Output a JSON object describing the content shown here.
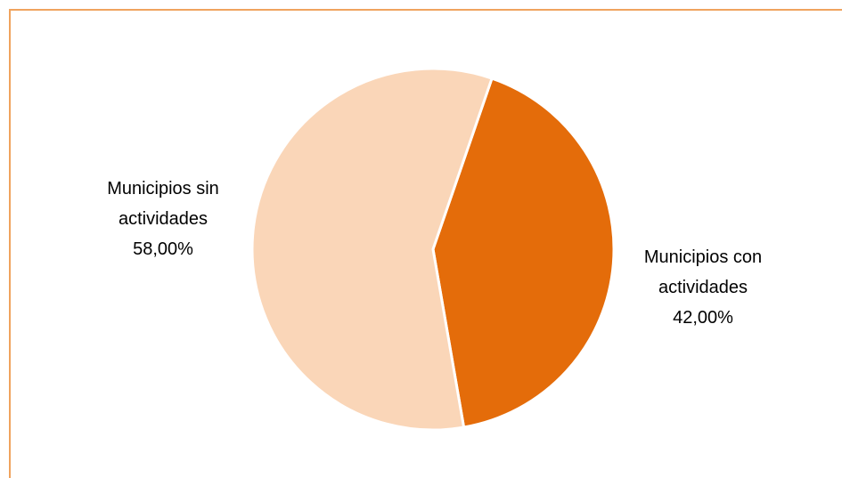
{
  "chart_data": {
    "type": "pie",
    "title": "",
    "slices": [
      {
        "name": "Municipios con actividades",
        "label_lines": [
          "Municipios con",
          "actividades"
        ],
        "value": 42.0,
        "value_label": "42,00%",
        "color": "#e46c0a"
      },
      {
        "name": "Municipios sin actividades",
        "label_lines": [
          "Municipios sin",
          "actividades"
        ],
        "value": 58.0,
        "value_label": "58,00%",
        "color": "#fad6b8"
      }
    ],
    "start_angle_deg": 19,
    "label_position": "outside",
    "legend": "none",
    "border_color": "#f0a35e"
  }
}
